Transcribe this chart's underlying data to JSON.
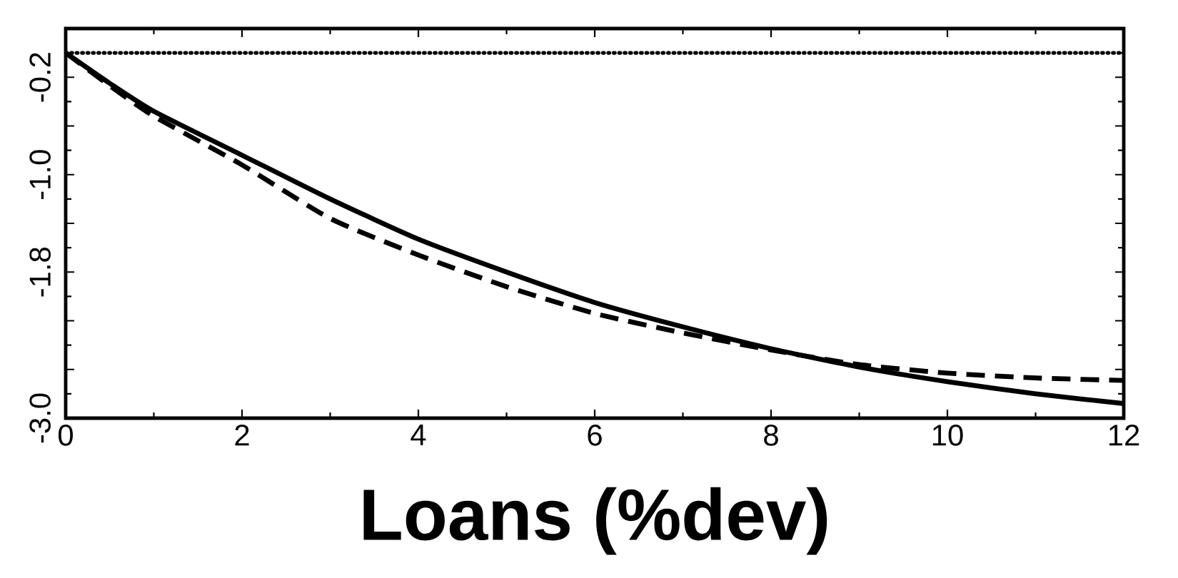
{
  "chart_data": {
    "type": "line",
    "xlabel": "Loans (%dev)",
    "x": [
      0,
      0.5,
      1,
      2,
      3,
      4,
      5,
      6,
      7,
      8,
      9,
      10,
      11,
      12
    ],
    "series": [
      {
        "color": "#000000",
        "line_style": "solid",
        "values": [
          0,
          -0.25,
          -0.48,
          -0.84,
          -1.2,
          -1.53,
          -1.8,
          -2.05,
          -2.25,
          -2.43,
          -2.58,
          -2.7,
          -2.8,
          -2.88
        ]
      },
      {
        "color": "#000000",
        "line_style": "dashed",
        "values": [
          0,
          -0.27,
          -0.52,
          -0.92,
          -1.36,
          -1.66,
          -1.92,
          -2.14,
          -2.3,
          -2.44,
          -2.56,
          -2.63,
          -2.67,
          -2.69
        ]
      }
    ],
    "xlim": [
      0,
      12
    ],
    "ylim": [
      -3.0,
      0.2
    ],
    "xticks": [
      0,
      2,
      4,
      6,
      8,
      10,
      12
    ],
    "yticks": [
      {
        "value": -3.0,
        "label": "-3.0"
      },
      {
        "value": -2.6,
        "label": null
      },
      {
        "value": -2.2,
        "label": null
      },
      {
        "value": -1.8,
        "label": "-1.8"
      },
      {
        "value": -1.4,
        "label": null
      },
      {
        "value": -1.0,
        "label": "-1.0"
      },
      {
        "value": -0.6,
        "label": null
      },
      {
        "value": -0.2,
        "label": "-0.2"
      },
      {
        "value": 0.2,
        "label": null
      }
    ],
    "ref_lines": [
      {
        "axis": "y",
        "value": 0,
        "color": "#000000",
        "line_style": "dotted"
      }
    ],
    "marker": "none"
  }
}
